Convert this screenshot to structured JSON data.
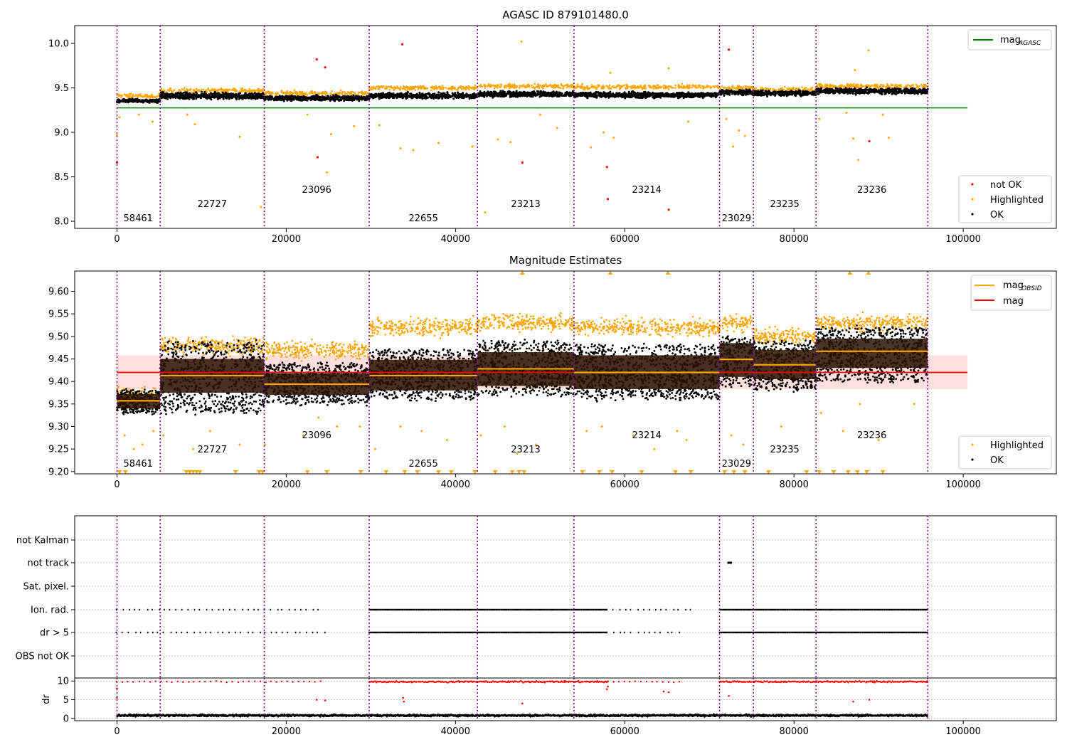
{
  "colors": {
    "ok": "#000000",
    "highlighted": "#ffa500",
    "not_ok": "#ff0000",
    "agasc_line": "#008000",
    "mag_line": "#ff0000",
    "obsid_mag": "#ffa500",
    "obs_divider": "#7b008b",
    "mag_band": "#ffd6d6",
    "obsid_band": "#2a1200"
  },
  "obs_boundaries": [
    0,
    5100,
    17400,
    29800,
    42600,
    54000,
    71200,
    75200,
    82600,
    95800
  ],
  "obsids": [
    {
      "label": "58461",
      "x": 2500,
      "row": 2
    },
    {
      "label": "22727",
      "x": 11250,
      "row": 1
    },
    {
      "label": "23096",
      "x": 23600,
      "row": 0
    },
    {
      "label": "22655",
      "x": 36200,
      "row": 2
    },
    {
      "label": "23213",
      "x": 48300,
      "row": 1
    },
    {
      "label": "23214",
      "x": 62600,
      "row": 0
    },
    {
      "label": "23029",
      "x": 73200,
      "row": 2
    },
    {
      "label": "23235",
      "x": 78900,
      "row": 1
    },
    {
      "label": "23236",
      "x": 89200,
      "row": 0
    }
  ],
  "chart_data": [
    {
      "type": "scatter",
      "title": "AGASC ID 879101480.0",
      "xlim": [
        -5000,
        111000
      ],
      "ylim": [
        7.92,
        10.2
      ],
      "xticks": [
        "0",
        "20000",
        "40000",
        "60000",
        "80000",
        "100000"
      ],
      "yticks": [
        "8.0",
        "8.5",
        "9.0",
        "9.5",
        "10.0"
      ],
      "legend_top": [
        {
          "label": "mag",
          "sub": "AGASC",
          "kind": "line",
          "color": "#008000"
        }
      ],
      "legend_bottom": [
        {
          "label": "not OK",
          "kind": "dot",
          "color": "#ff0000"
        },
        {
          "label": "Highlighted",
          "kind": "dot",
          "color": "#ffa500"
        },
        {
          "label": "OK",
          "kind": "dot",
          "color": "#000000"
        }
      ],
      "mag_agasc": 9.275,
      "mag_agasc_x": [
        0,
        100500
      ],
      "segments": [
        {
          "x0": 0,
          "x1": 5100,
          "ok": 9.355,
          "spread": 0.03,
          "hi": 9.41
        },
        {
          "x0": 5100,
          "x1": 17400,
          "ok": 9.41,
          "spread": 0.06,
          "hi": 9.47
        },
        {
          "x0": 17400,
          "x1": 29800,
          "ok": 9.385,
          "spread": 0.045,
          "hi": 9.44
        },
        {
          "x0": 29800,
          "x1": 42600,
          "ok": 9.41,
          "spread": 0.05,
          "hi": 9.5
        },
        {
          "x0": 42600,
          "x1": 54000,
          "ok": 9.43,
          "spread": 0.05,
          "hi": 9.52
        },
        {
          "x0": 54000,
          "x1": 71200,
          "ok": 9.42,
          "spread": 0.05,
          "hi": 9.51
        },
        {
          "x0": 71200,
          "x1": 75200,
          "ok": 9.45,
          "spread": 0.05,
          "hi": 9.5
        },
        {
          "x0": 75200,
          "x1": 82600,
          "ok": 9.44,
          "spread": 0.05,
          "hi": 9.48
        },
        {
          "x0": 82600,
          "x1": 95800,
          "ok": 9.465,
          "spread": 0.05,
          "hi": 9.52
        }
      ],
      "not_ok_points": [
        [
          0,
          8.66
        ],
        [
          23600,
          9.82
        ],
        [
          23700,
          8.72
        ],
        [
          24600,
          9.73
        ],
        [
          33700,
          9.99
        ],
        [
          47900,
          8.66
        ],
        [
          57900,
          8.61
        ],
        [
          58000,
          8.25
        ],
        [
          65200,
          8.13
        ],
        [
          72300,
          9.93
        ],
        [
          88900,
          8.9
        ]
      ],
      "highlighted_outliers": [
        [
          0,
          8.97
        ],
        [
          300,
          9.17
        ],
        [
          2600,
          9.2
        ],
        [
          4200,
          9.12
        ],
        [
          8300,
          9.2
        ],
        [
          9200,
          9.09
        ],
        [
          14500,
          8.95
        ],
        [
          17000,
          8.16
        ],
        [
          22500,
          9.2
        ],
        [
          24800,
          8.55
        ],
        [
          25300,
          8.98
        ],
        [
          28000,
          9.07
        ],
        [
          31000,
          9.08
        ],
        [
          33500,
          8.82
        ],
        [
          35000,
          8.8
        ],
        [
          38000,
          8.88
        ],
        [
          42000,
          8.84
        ],
        [
          43500,
          8.1
        ],
        [
          45000,
          8.92
        ],
        [
          46500,
          8.89
        ],
        [
          47800,
          10.02
        ],
        [
          50000,
          9.2
        ],
        [
          52000,
          9.05
        ],
        [
          56000,
          8.83
        ],
        [
          57500,
          9.0
        ],
        [
          58300,
          9.67
        ],
        [
          58700,
          8.94
        ],
        [
          65200,
          9.72
        ],
        [
          67500,
          9.12
        ],
        [
          72000,
          9.15
        ],
        [
          72800,
          8.84
        ],
        [
          73500,
          9.02
        ],
        [
          74200,
          8.96
        ],
        [
          83000,
          9.15
        ],
        [
          86200,
          9.22
        ],
        [
          87000,
          8.93
        ],
        [
          87200,
          9.7
        ],
        [
          87600,
          8.69
        ],
        [
          88800,
          9.92
        ],
        [
          90500,
          9.2
        ],
        [
          91200,
          8.94
        ]
      ]
    },
    {
      "type": "scatter",
      "title": "Magnitude Estimates",
      "xlim": [
        -5000,
        111000
      ],
      "ylim": [
        9.195,
        9.645
      ],
      "xticks": [
        "0",
        "20000",
        "40000",
        "60000",
        "80000",
        "100000"
      ],
      "yticks": [
        "9.20",
        "9.25",
        "9.30",
        "9.35",
        "9.40",
        "9.45",
        "9.50",
        "9.55",
        "9.60"
      ],
      "legend_top": [
        {
          "label": "mag",
          "sub": "OBSID",
          "kind": "line",
          "color": "#ffa500"
        },
        {
          "label": "mag",
          "kind": "line",
          "color": "#ff0000"
        }
      ],
      "legend_bottom": [
        {
          "label": "Highlighted",
          "kind": "dot",
          "color": "#ffa500"
        },
        {
          "label": "OK",
          "kind": "dot",
          "color": "#000000"
        }
      ],
      "mag": 9.42,
      "mag_band": [
        9.383,
        9.458
      ],
      "mag_x": [
        0,
        100500
      ],
      "segments": [
        {
          "x0": 0,
          "x1": 5100,
          "mean": 9.357,
          "band": [
            9.34,
            9.372
          ],
          "lo": 9.33,
          "hi": 9.38,
          "hl": 9.37
        },
        {
          "x0": 5100,
          "x1": 17400,
          "mean": 9.413,
          "band": [
            9.375,
            9.45
          ],
          "lo": 9.33,
          "hi": 9.49,
          "hl": 9.48
        },
        {
          "x0": 17400,
          "x1": 29800,
          "mean": 9.394,
          "band": [
            9.37,
            9.418
          ],
          "lo": 9.35,
          "hi": 9.44,
          "hl": 9.47
        },
        {
          "x0": 29800,
          "x1": 42600,
          "mean": 9.413,
          "band": [
            9.38,
            9.448
          ],
          "lo": 9.36,
          "hi": 9.47,
          "hl": 9.52
        },
        {
          "x0": 42600,
          "x1": 54000,
          "mean": 9.428,
          "band": [
            9.39,
            9.465
          ],
          "lo": 9.37,
          "hi": 9.49,
          "hl": 9.53
        },
        {
          "x0": 54000,
          "x1": 71200,
          "mean": 9.42,
          "band": [
            9.383,
            9.458
          ],
          "lo": 9.36,
          "hi": 9.48,
          "hl": 9.52
        },
        {
          "x0": 71200,
          "x1": 75200,
          "mean": 9.449,
          "band": [
            9.41,
            9.485
          ],
          "lo": 9.39,
          "hi": 9.5,
          "hl": 9.53
        },
        {
          "x0": 75200,
          "x1": 82600,
          "mean": 9.437,
          "band": [
            9.405,
            9.47
          ],
          "lo": 9.38,
          "hi": 9.49,
          "hl": 9.5
        },
        {
          "x0": 82600,
          "x1": 95800,
          "mean": 9.467,
          "band": [
            9.43,
            9.495
          ],
          "lo": 9.4,
          "hi": 9.52,
          "hl": 9.53
        }
      ],
      "clipped_markers_bottom": [
        300,
        1000,
        8200,
        8600,
        9000,
        9400,
        9800,
        14000,
        16800,
        17200,
        22500,
        24800,
        28800,
        31800,
        34000,
        35500,
        38000,
        39500,
        42300,
        44700,
        46700,
        47500,
        48100,
        55000,
        57000,
        58500,
        62000,
        66000,
        67800,
        71800,
        72900,
        74200,
        77000,
        81500,
        83000,
        84700,
        86400,
        87500,
        88600,
        90500
      ],
      "clipped_markers_top": [
        47900,
        58300,
        65100,
        86600,
        88800
      ],
      "highlighted_outliers": [
        [
          900,
          9.28
        ],
        [
          2000,
          9.25
        ],
        [
          3000,
          9.26
        ],
        [
          4300,
          9.29
        ],
        [
          5500,
          9.28
        ],
        [
          9000,
          9.25
        ],
        [
          11000,
          9.29
        ],
        [
          14500,
          9.26
        ],
        [
          17500,
          9.26
        ],
        [
          22000,
          9.28
        ],
        [
          23800,
          9.32
        ],
        [
          26000,
          9.3
        ],
        [
          28700,
          9.3
        ],
        [
          30500,
          9.25
        ],
        [
          33500,
          9.3
        ],
        [
          36000,
          9.29
        ],
        [
          39000,
          9.27
        ],
        [
          43000,
          9.28
        ],
        [
          45800,
          9.3
        ],
        [
          47300,
          9.24
        ],
        [
          49500,
          9.26
        ],
        [
          55500,
          9.29
        ],
        [
          57300,
          9.3
        ],
        [
          61000,
          9.28
        ],
        [
          63500,
          9.25
        ],
        [
          66200,
          9.29
        ],
        [
          67300,
          9.27
        ],
        [
          72600,
          9.28
        ],
        [
          74000,
          9.26
        ],
        [
          78500,
          9.3
        ],
        [
          83200,
          9.33
        ],
        [
          85800,
          9.29
        ],
        [
          87800,
          9.35
        ],
        [
          90000,
          9.27
        ],
        [
          94200,
          9.35
        ]
      ]
    },
    {
      "type": "scatter",
      "title": "",
      "categories": [
        "not Kalman",
        "not track",
        "Sat. pixel.",
        "Ion. rad.",
        "dr > 5",
        "OBS not OK"
      ],
      "xlim": [
        -5000,
        111000
      ],
      "flag_ranges": {
        "not Kalman": [],
        "not track": [
          [
            72200,
            72600
          ]
        ],
        "Sat. pixel.": [],
        "Ion. rad.": [
          [
            0,
            24000,
            "sparse"
          ],
          [
            29800,
            58000,
            "dense"
          ],
          [
            58000,
            68000,
            "sparse"
          ],
          [
            71200,
            95800,
            "dense"
          ]
        ],
        "dr > 5": [
          [
            0,
            24500,
            "sparse"
          ],
          [
            29800,
            58000,
            "dense"
          ],
          [
            58000,
            66500,
            "sparse"
          ],
          [
            71200,
            95800,
            "dense"
          ]
        ],
        "OBS not OK": []
      }
    },
    {
      "type": "scatter",
      "title": "",
      "ylabel": "dr",
      "xlim": [
        -5000,
        111000
      ],
      "ylim": [
        -0.6,
        10.8
      ],
      "xticks": [
        "0",
        "20000",
        "40000",
        "60000",
        "80000",
        "100000"
      ],
      "yticks": [
        "0",
        "5",
        "10"
      ],
      "dr_ok_level": 0.8,
      "dr_flagged_level": 9.8,
      "dr_outliers": [
        [
          0,
          8.0
        ],
        [
          0,
          5.5
        ],
        [
          23600,
          5.0
        ],
        [
          24600,
          4.8
        ],
        [
          33800,
          5.5
        ],
        [
          33900,
          4.5
        ],
        [
          47900,
          4.0
        ],
        [
          57900,
          7.8
        ],
        [
          58000,
          8.5
        ],
        [
          64600,
          7.2
        ],
        [
          65200,
          7.0
        ],
        [
          72300,
          6.0
        ],
        [
          87000,
          4.5
        ],
        [
          88900,
          5.0
        ]
      ]
    }
  ]
}
